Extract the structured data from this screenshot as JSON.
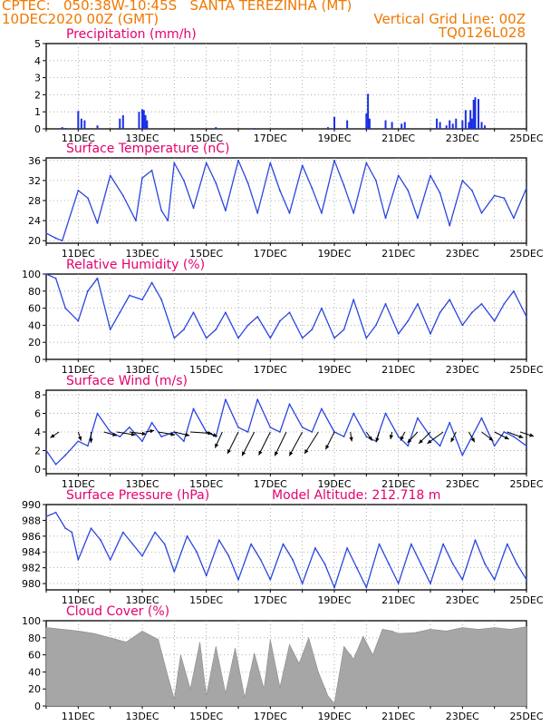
{
  "header": {
    "line1_left": "CPTEC:   050:38W-10:45S   SANTA TEREZINHA (MT)",
    "line2_left": "10DEC2020 00Z (GMT)",
    "line2_right": "Vertical Grid Line: 00Z",
    "line3_right": "TQ0126L028"
  },
  "colors": {
    "header": "#f07800",
    "panel_title": "#e6006e",
    "series_line": "#2b45e0",
    "precip_bar": "#1b2fe6",
    "cloud_fill": "#a6a6a6",
    "wind_arrow": "#000000",
    "grid": "#9a9a9a"
  },
  "x_axis": {
    "start_day": 10,
    "end_day": 25,
    "labels": [
      "11DEC",
      "13DEC",
      "15DEC",
      "17DEC",
      "19DEC",
      "21DEC",
      "23DEC",
      "25DEC"
    ],
    "label_days": [
      11,
      13,
      15,
      17,
      19,
      21,
      23,
      25
    ]
  },
  "chart_data": [
    {
      "type": "bar",
      "title": "Precipitation (mm/h)",
      "ylim": [
        0,
        5
      ],
      "yticks": [
        0,
        1,
        2,
        3,
        4,
        5
      ],
      "grid": true,
      "x": [
        10.5,
        10.6,
        11.0,
        11.1,
        11.2,
        11.6,
        12.3,
        12.4,
        12.9,
        13.0,
        13.05,
        13.1,
        13.15,
        15.3,
        16.5,
        18.8,
        19.0,
        19.4,
        20.0,
        20.05,
        20.1,
        20.6,
        20.8,
        21.1,
        21.2,
        22.2,
        22.3,
        22.5,
        22.6,
        22.7,
        22.8,
        23.0,
        23.1,
        23.2,
        23.25,
        23.3,
        23.35,
        23.4,
        23.5,
        23.6,
        23.7
      ],
      "values": [
        0.1,
        0.05,
        1.05,
        0.6,
        0.5,
        0.2,
        0.6,
        0.8,
        1.0,
        1.15,
        1.1,
        0.8,
        0.5,
        0.1,
        0.05,
        0.1,
        0.7,
        0.5,
        0.9,
        2.05,
        0.6,
        0.5,
        0.4,
        0.3,
        0.4,
        0.6,
        0.4,
        0.2,
        0.5,
        0.3,
        0.6,
        0.5,
        1.1,
        0.4,
        1.1,
        0.6,
        1.7,
        1.85,
        1.75,
        0.4,
        0.2
      ]
    },
    {
      "type": "line",
      "title": "Surface Temperature (nC)",
      "ylim": [
        19.5,
        36.5
      ],
      "yticks": [
        20,
        24,
        28,
        32,
        36
      ],
      "grid": true,
      "x": [
        10.0,
        10.3,
        10.5,
        11.0,
        11.3,
        11.6,
        12.0,
        12.4,
        12.8,
        13.0,
        13.3,
        13.6,
        13.8,
        14.0,
        14.3,
        14.6,
        15.0,
        15.3,
        15.6,
        16.0,
        16.3,
        16.6,
        17.0,
        17.3,
        17.6,
        18.0,
        18.3,
        18.6,
        19.0,
        19.3,
        19.6,
        20.0,
        20.3,
        20.6,
        21.0,
        21.3,
        21.6,
        22.0,
        22.3,
        22.6,
        23.0,
        23.3,
        23.6,
        24.0,
        24.3,
        24.6,
        25.0
      ],
      "values": [
        21.5,
        20.5,
        20.0,
        30.0,
        28.5,
        23.5,
        33.0,
        29.0,
        24.0,
        32.5,
        34.0,
        26.0,
        24.0,
        35.5,
        32.0,
        26.5,
        35.5,
        31.5,
        26.0,
        36.0,
        31.5,
        25.5,
        35.5,
        30.0,
        25.5,
        35.0,
        30.5,
        25.5,
        36.0,
        31.0,
        25.5,
        35.5,
        32.0,
        24.5,
        33.0,
        30.0,
        24.5,
        33.0,
        29.5,
        23.0,
        32.0,
        30.0,
        25.5,
        29.0,
        28.5,
        24.5,
        30.5
      ]
    },
    {
      "type": "line",
      "title": "Relative Humidity (%)",
      "ylim": [
        0,
        100
      ],
      "yticks": [
        0,
        20,
        40,
        60,
        80,
        100
      ],
      "grid": true,
      "x": [
        10.0,
        10.3,
        10.6,
        11.0,
        11.3,
        11.6,
        12.0,
        12.3,
        12.6,
        13.0,
        13.3,
        13.6,
        14.0,
        14.3,
        14.6,
        15.0,
        15.3,
        15.6,
        16.0,
        16.3,
        16.6,
        17.0,
        17.3,
        17.6,
        18.0,
        18.3,
        18.6,
        19.0,
        19.3,
        19.6,
        20.0,
        20.3,
        20.6,
        21.0,
        21.3,
        21.6,
        22.0,
        22.3,
        22.6,
        23.0,
        23.3,
        23.6,
        24.0,
        24.3,
        24.6,
        25.0
      ],
      "values": [
        100,
        95,
        60,
        45,
        80,
        95,
        35,
        55,
        75,
        70,
        90,
        70,
        25,
        35,
        55,
        25,
        35,
        55,
        25,
        40,
        50,
        25,
        45,
        55,
        25,
        35,
        60,
        25,
        35,
        70,
        25,
        40,
        65,
        30,
        45,
        65,
        30,
        55,
        70,
        40,
        55,
        65,
        45,
        65,
        80,
        50
      ]
    },
    {
      "type": "line",
      "title": "Surface Wind (m/s)",
      "ylim": [
        -0.5,
        8.5
      ],
      "yticks": [
        0,
        2,
        4,
        6,
        8
      ],
      "grid": true,
      "x": [
        10.0,
        10.3,
        10.6,
        11.0,
        11.3,
        11.6,
        12.0,
        12.3,
        12.6,
        13.0,
        13.3,
        13.6,
        14.0,
        14.3,
        14.6,
        15.0,
        15.3,
        15.6,
        16.0,
        16.3,
        16.6,
        17.0,
        17.3,
        17.6,
        18.0,
        18.3,
        18.6,
        19.0,
        19.3,
        19.6,
        20.0,
        20.3,
        20.6,
        21.0,
        21.3,
        21.6,
        22.0,
        22.3,
        22.6,
        23.0,
        23.3,
        23.6,
        24.0,
        24.3,
        24.6,
        25.0
      ],
      "values": [
        2.0,
        0.5,
        1.5,
        3.0,
        2.5,
        6.0,
        4.0,
        3.5,
        4.5,
        3.0,
        5.0,
        3.5,
        4.0,
        3.0,
        6.5,
        4.0,
        3.5,
        7.5,
        4.5,
        4.0,
        7.5,
        4.5,
        4.0,
        7.0,
        4.5,
        4.0,
        6.5,
        4.0,
        3.5,
        6.0,
        3.5,
        3.0,
        6.0,
        3.5,
        2.5,
        5.5,
        3.5,
        2.5,
        5.0,
        1.5,
        3.5,
        5.5,
        2.5,
        4.0,
        3.5,
        2.5
      ],
      "vectors": {
        "x": [
          10.4,
          11.0,
          11.4,
          11.8,
          12.2,
          12.6,
          13.1,
          13.5,
          14.0,
          14.5,
          15.0,
          15.5,
          16.0,
          16.5,
          17.0,
          17.5,
          18.0,
          18.5,
          19.0,
          19.5,
          20.0,
          20.4,
          20.8,
          21.2,
          21.6,
          22.0,
          22.4,
          22.8,
          23.2,
          23.6,
          24.0,
          24.4,
          24.8
        ],
        "u": [
          -1.2,
          0.4,
          0.0,
          1.8,
          2.6,
          2.3,
          1.2,
          2.3,
          2.1,
          3.0,
          1.5,
          -1.0,
          -1.5,
          -1.7,
          -1.6,
          -1.6,
          -1.8,
          -1.9,
          -1.2,
          0.2,
          0.8,
          -0.4,
          -0.2,
          -0.6,
          -1.4,
          -1.6,
          -2.2,
          -0.7,
          0.8,
          1.6,
          2.0,
          2.2,
          1.9
        ],
        "v": [
          -0.8,
          -1.2,
          -1.5,
          -0.5,
          -0.4,
          -0.3,
          0.2,
          -0.4,
          -0.5,
          -0.2,
          -0.6,
          -2.2,
          -3.0,
          -3.3,
          -3.2,
          -3.3,
          -3.3,
          -3.0,
          -2.4,
          -1.3,
          -1.2,
          -1.4,
          -1.0,
          -1.2,
          -1.5,
          -1.6,
          -1.6,
          -1.4,
          -1.4,
          -1.2,
          -1.0,
          -0.8,
          -0.6
        ]
      }
    },
    {
      "type": "line",
      "title": "Surface Pressure (hPa)",
      "annotation": "Model Altitude: 212.718 m",
      "ylim": [
        979.2,
        990
      ],
      "yticks": [
        980,
        982,
        984,
        986,
        988,
        990
      ],
      "grid": true,
      "x": [
        10.0,
        10.3,
        10.6,
        10.8,
        11.0,
        11.4,
        11.7,
        12.0,
        12.4,
        12.7,
        13.0,
        13.4,
        13.7,
        14.0,
        14.4,
        14.7,
        15.0,
        15.4,
        15.7,
        16.0,
        16.4,
        16.7,
        17.0,
        17.4,
        17.7,
        18.0,
        18.4,
        18.7,
        19.0,
        19.4,
        19.7,
        20.0,
        20.4,
        20.7,
        21.0,
        21.4,
        21.7,
        22.0,
        22.4,
        22.7,
        23.0,
        23.4,
        23.7,
        24.0,
        24.4,
        24.7,
        25.0
      ],
      "values": [
        988.5,
        989.0,
        987.0,
        986.5,
        983.0,
        987.0,
        985.5,
        983.0,
        986.5,
        985.0,
        983.5,
        986.5,
        985.0,
        981.5,
        986.0,
        984.0,
        981.0,
        985.5,
        983.5,
        980.5,
        985.0,
        983.0,
        980.5,
        985.0,
        983.0,
        980.0,
        984.5,
        982.5,
        979.5,
        984.5,
        982.0,
        979.5,
        985.0,
        982.5,
        980.0,
        985.0,
        982.5,
        980.0,
        985.0,
        982.5,
        980.5,
        985.5,
        982.5,
        980.5,
        985.0,
        982.5,
        980.5
      ]
    },
    {
      "type": "area",
      "title": "Cloud Cover (%)",
      "ylim": [
        0,
        100
      ],
      "yticks": [
        0,
        20,
        40,
        60,
        80,
        100
      ],
      "grid": true,
      "x": [
        10.0,
        10.5,
        11.0,
        11.5,
        12.0,
        12.5,
        13.0,
        13.5,
        13.8,
        14.0,
        14.2,
        14.5,
        14.8,
        15.0,
        15.3,
        15.6,
        15.9,
        16.2,
        16.5,
        16.8,
        17.0,
        17.3,
        17.6,
        17.9,
        18.2,
        18.5,
        18.8,
        19.0,
        19.3,
        19.6,
        19.9,
        20.2,
        20.5,
        20.8,
        21.0,
        21.5,
        22.0,
        22.5,
        23.0,
        23.5,
        24.0,
        24.5,
        25.0
      ],
      "values": [
        92,
        90,
        88,
        85,
        80,
        75,
        88,
        78,
        35,
        8,
        60,
        20,
        75,
        12,
        70,
        15,
        68,
        10,
        62,
        20,
        78,
        22,
        72,
        50,
        80,
        40,
        12,
        3,
        70,
        55,
        82,
        60,
        90,
        88,
        85,
        86,
        90,
        88,
        92,
        90,
        92,
        90,
        93
      ]
    }
  ]
}
